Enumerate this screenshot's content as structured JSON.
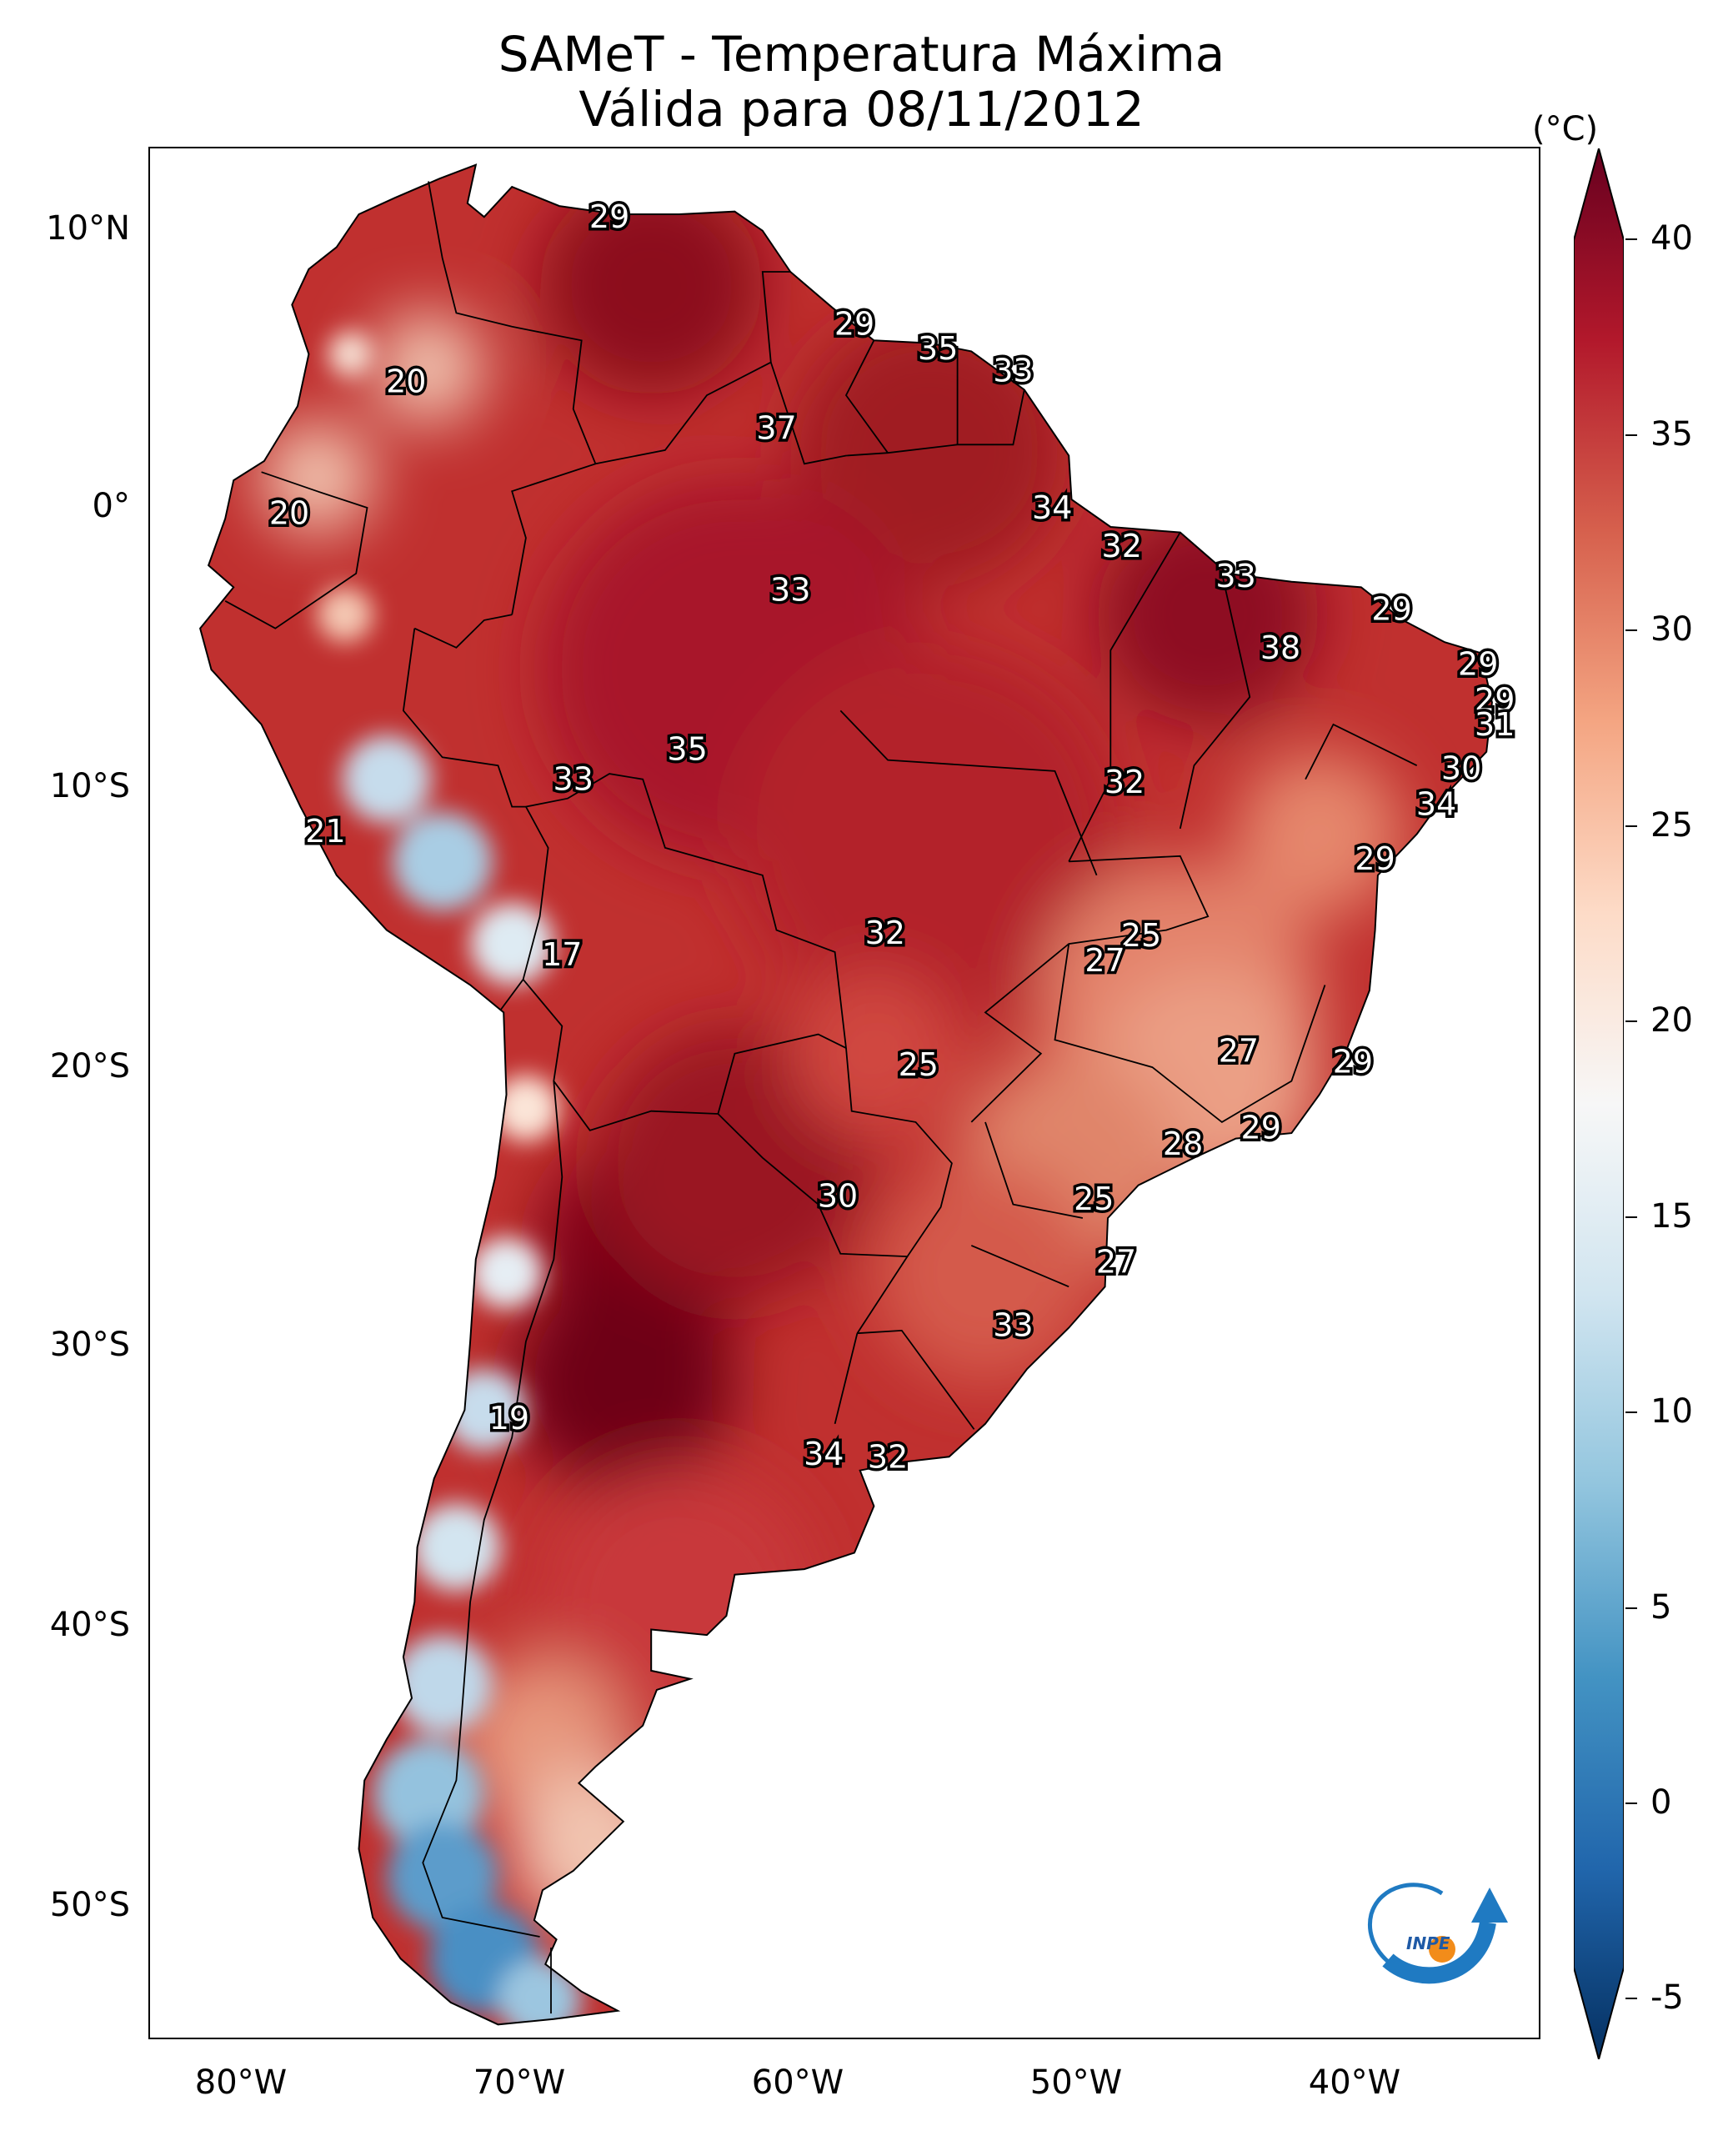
{
  "title": {
    "line1": "SAMeT - Temperatura Máxima",
    "line2": "Válida para 08/11/2012"
  },
  "axes": {
    "lat_labels": [
      "10°N",
      "0°",
      "10°S",
      "20°S",
      "30°S",
      "40°S",
      "50°S"
    ],
    "lon_labels": [
      "80°W",
      "70°W",
      "60°W",
      "50°W",
      "40°W"
    ]
  },
  "colorbar": {
    "unit": "(°C)",
    "ticks": [
      "40",
      "35",
      "30",
      "25",
      "20",
      "15",
      "10",
      "5",
      "0",
      "-5"
    ],
    "min": -5,
    "max": 40,
    "colormap": [
      "#053061",
      "#2166ac",
      "#4393c3",
      "#92c5de",
      "#d1e5f0",
      "#f7f7f7",
      "#fddbc7",
      "#f4a582",
      "#d6604d",
      "#b2182b",
      "#67001f"
    ]
  },
  "map": {
    "lon_range": [
      -83,
      -33
    ],
    "lat_range": [
      -56,
      13
    ],
    "values": [
      {
        "text": "29",
        "lon": -66.5,
        "lat": 10.5
      },
      {
        "text": "20",
        "lon": -73.8,
        "lat": 4.5
      },
      {
        "text": "29",
        "lon": -57.7,
        "lat": 6.6
      },
      {
        "text": "35",
        "lon": -54.7,
        "lat": 5.7
      },
      {
        "text": "33",
        "lon": -52.0,
        "lat": 4.9
      },
      {
        "text": "37",
        "lon": -60.5,
        "lat": 2.8
      },
      {
        "text": "20",
        "lon": -78.0,
        "lat": -0.3
      },
      {
        "text": "34",
        "lon": -50.6,
        "lat": -0.1
      },
      {
        "text": "32",
        "lon": -48.1,
        "lat": -1.5
      },
      {
        "text": "33",
        "lon": -60.0,
        "lat": -3.1
      },
      {
        "text": "33",
        "lon": -44.0,
        "lat": -2.6
      },
      {
        "text": "29",
        "lon": -38.4,
        "lat": -3.8
      },
      {
        "text": "38",
        "lon": -42.4,
        "lat": -5.2
      },
      {
        "text": "29",
        "lon": -35.3,
        "lat": -5.8
      },
      {
        "text": "29",
        "lon": -34.7,
        "lat": -7.1
      },
      {
        "text": "31",
        "lon": -34.7,
        "lat": -8.0
      },
      {
        "text": "35",
        "lon": -63.7,
        "lat": -8.9
      },
      {
        "text": "33",
        "lon": -67.8,
        "lat": -10.0
      },
      {
        "text": "30",
        "lon": -35.9,
        "lat": -9.6
      },
      {
        "text": "32",
        "lon": -48.0,
        "lat": -10.1
      },
      {
        "text": "34",
        "lon": -36.8,
        "lat": -10.9
      },
      {
        "text": "21",
        "lon": -76.7,
        "lat": -11.9
      },
      {
        "text": "29",
        "lon": -39.0,
        "lat": -12.9
      },
      {
        "text": "32",
        "lon": -56.6,
        "lat": -15.6
      },
      {
        "text": "25",
        "lon": -47.4,
        "lat": -15.7
      },
      {
        "text": "27",
        "lon": -48.7,
        "lat": -16.6
      },
      {
        "text": "17",
        "lon": -68.2,
        "lat": -16.4
      },
      {
        "text": "27",
        "lon": -43.9,
        "lat": -19.9
      },
      {
        "text": "29",
        "lon": -39.8,
        "lat": -20.3
      },
      {
        "text": "25",
        "lon": -55.4,
        "lat": -20.4
      },
      {
        "text": "28",
        "lon": -45.9,
        "lat": -23.3
      },
      {
        "text": "29",
        "lon": -43.1,
        "lat": -22.7
      },
      {
        "text": "30",
        "lon": -58.3,
        "lat": -25.2
      },
      {
        "text": "25",
        "lon": -49.1,
        "lat": -25.3
      },
      {
        "text": "27",
        "lon": -48.3,
        "lat": -27.6
      },
      {
        "text": "33",
        "lon": -52.0,
        "lat": -29.9
      },
      {
        "text": "19",
        "lon": -70.1,
        "lat": -33.3
      },
      {
        "text": "34",
        "lon": -58.8,
        "lat": -34.6
      },
      {
        "text": "32",
        "lon": -56.5,
        "lat": -34.7
      }
    ]
  },
  "logo": {
    "text": "INPE"
  }
}
